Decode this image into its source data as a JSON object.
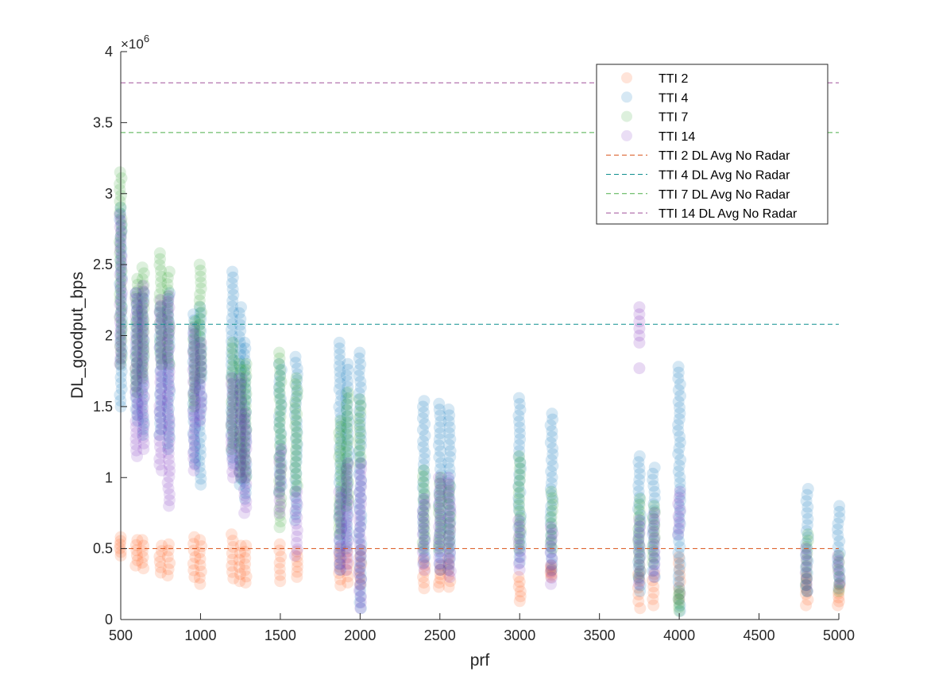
{
  "chart_data": {
    "type": "scatter",
    "title": "",
    "xlabel": "prf",
    "ylabel": "DL_goodput_bps",
    "xlim": [
      500,
      5000
    ],
    "ylim": [
      0,
      4000000
    ],
    "x_ticks": [
      500,
      1000,
      1500,
      2000,
      2500,
      3000,
      3500,
      4000,
      4500,
      5000
    ],
    "x_tick_labels": [
      "500",
      "1000",
      "1500",
      "2000",
      "2500",
      "3000",
      "3500",
      "4000",
      "4500",
      "5000"
    ],
    "y_ticks": [
      0,
      500000,
      1000000,
      1500000,
      2000000,
      2500000,
      3000000,
      3500000,
      4000000
    ],
    "y_tick_labels": [
      "0",
      "0.5",
      "1",
      "1.5",
      "2",
      "2.5",
      "3",
      "3.5",
      "4"
    ],
    "y_exponent_label": "×10",
    "y_exponent_power": "6",
    "grid": false,
    "legend_position": "top-right",
    "scatter_series": [
      {
        "name": "TTI 2",
        "color": "#FF5A14",
        "clusters": [
          {
            "x": 500,
            "ymin": 450000,
            "ymax": 580000
          },
          {
            "x": 600,
            "ymin": 380000,
            "ymax": 560000
          },
          {
            "x": 640,
            "ymin": 360000,
            "ymax": 560000
          },
          {
            "x": 750,
            "ymin": 330000,
            "ymax": 520000
          },
          {
            "x": 800,
            "ymin": 310000,
            "ymax": 530000
          },
          {
            "x": 960,
            "ymin": 300000,
            "ymax": 580000
          },
          {
            "x": 1000,
            "ymin": 250000,
            "ymax": 560000
          },
          {
            "x": 1200,
            "ymin": 290000,
            "ymax": 600000
          },
          {
            "x": 1250,
            "ymin": 270000,
            "ymax": 520000
          },
          {
            "x": 1280,
            "ymin": 260000,
            "ymax": 520000
          },
          {
            "x": 1500,
            "ymin": 270000,
            "ymax": 530000
          },
          {
            "x": 1600,
            "ymin": 300000,
            "ymax": 480000
          },
          {
            "x": 1875,
            "ymin": 240000,
            "ymax": 500000
          },
          {
            "x": 1920,
            "ymin": 260000,
            "ymax": 480000
          },
          {
            "x": 2000,
            "ymin": 250000,
            "ymax": 490000
          },
          {
            "x": 2400,
            "ymin": 220000,
            "ymax": 420000
          },
          {
            "x": 2500,
            "ymin": 230000,
            "ymax": 380000
          },
          {
            "x": 2560,
            "ymin": 230000,
            "ymax": 430000
          },
          {
            "x": 3000,
            "ymin": 130000,
            "ymax": 300000
          },
          {
            "x": 3200,
            "ymin": 300000,
            "ymax": 380000
          },
          {
            "x": 3750,
            "ymin": 80000,
            "ymax": 320000
          },
          {
            "x": 3840,
            "ymin": 100000,
            "ymax": 320000
          },
          {
            "x": 4000,
            "ymin": 140000,
            "ymax": 440000
          },
          {
            "x": 4800,
            "ymin": 100000,
            "ymax": 300000
          },
          {
            "x": 5000,
            "ymin": 100000,
            "ymax": 240000
          }
        ]
      },
      {
        "name": "TTI 4",
        "color": "#0072BD",
        "clusters": [
          {
            "x": 500,
            "ymin": 1500000,
            "ymax": 2900000
          },
          {
            "x": 600,
            "ymin": 1400000,
            "ymax": 2300000
          },
          {
            "x": 640,
            "ymin": 1300000,
            "ymax": 2300000
          },
          {
            "x": 750,
            "ymin": 1300000,
            "ymax": 2200000
          },
          {
            "x": 800,
            "ymin": 1200000,
            "ymax": 2300000
          },
          {
            "x": 960,
            "ymin": 1100000,
            "ymax": 2150000
          },
          {
            "x": 1000,
            "ymin": 950000,
            "ymax": 2200000
          },
          {
            "x": 1200,
            "ymin": 1100000,
            "ymax": 2450000
          },
          {
            "x": 1250,
            "ymin": 950000,
            "ymax": 2200000
          },
          {
            "x": 1280,
            "ymin": 850000,
            "ymax": 1950000
          },
          {
            "x": 1500,
            "ymin": 900000,
            "ymax": 1800000
          },
          {
            "x": 1600,
            "ymin": 700000,
            "ymax": 1850000
          },
          {
            "x": 1875,
            "ymin": 350000,
            "ymax": 1950000
          },
          {
            "x": 1920,
            "ymin": 500000,
            "ymax": 1800000
          },
          {
            "x": 2000,
            "ymin": 80000,
            "ymax": 1880000
          },
          {
            "x": 2400,
            "ymin": 400000,
            "ymax": 1540000
          },
          {
            "x": 2500,
            "ymin": 350000,
            "ymax": 1520000
          },
          {
            "x": 2560,
            "ymin": 350000,
            "ymax": 1480000
          },
          {
            "x": 3000,
            "ymin": 400000,
            "ymax": 1560000
          },
          {
            "x": 3200,
            "ymin": 350000,
            "ymax": 1450000
          },
          {
            "x": 3750,
            "ymin": 200000,
            "ymax": 1150000
          },
          {
            "x": 3840,
            "ymin": 300000,
            "ymax": 1070000
          },
          {
            "x": 4000,
            "ymin": 60000,
            "ymax": 1780000
          },
          {
            "x": 4800,
            "ymin": 200000,
            "ymax": 920000
          },
          {
            "x": 5000,
            "ymin": 220000,
            "ymax": 800000
          }
        ]
      },
      {
        "name": "TTI 7",
        "color": "#2CA02C",
        "clusters": [
          {
            "x": 500,
            "ymin": 1800000,
            "ymax": 3150000
          },
          {
            "x": 600,
            "ymin": 1600000,
            "ymax": 2400000
          },
          {
            "x": 640,
            "ymin": 1700000,
            "ymax": 2480000
          },
          {
            "x": 750,
            "ymin": 1800000,
            "ymax": 2580000
          },
          {
            "x": 800,
            "ymin": 1800000,
            "ymax": 2450000
          },
          {
            "x": 960,
            "ymin": 1500000,
            "ymax": 2100000
          },
          {
            "x": 1000,
            "ymin": 1700000,
            "ymax": 2500000
          },
          {
            "x": 1200,
            "ymin": 1200000,
            "ymax": 1950000
          },
          {
            "x": 1250,
            "ymin": 1000000,
            "ymax": 1800000
          },
          {
            "x": 1280,
            "ymin": 1000000,
            "ymax": 1800000
          },
          {
            "x": 1500,
            "ymin": 650000,
            "ymax": 1880000
          },
          {
            "x": 1600,
            "ymin": 900000,
            "ymax": 1700000
          },
          {
            "x": 1875,
            "ymin": 600000,
            "ymax": 1400000
          },
          {
            "x": 1920,
            "ymin": 800000,
            "ymax": 1600000
          },
          {
            "x": 2000,
            "ymin": 1100000,
            "ymax": 1550000
          },
          {
            "x": 2400,
            "ymin": 500000,
            "ymax": 1050000
          },
          {
            "x": 2500,
            "ymin": 500000,
            "ymax": 1000000
          },
          {
            "x": 2560,
            "ymin": 500000,
            "ymax": 950000
          },
          {
            "x": 3000,
            "ymin": 500000,
            "ymax": 1150000
          },
          {
            "x": 3200,
            "ymin": 500000,
            "ymax": 900000
          },
          {
            "x": 3750,
            "ymin": 300000,
            "ymax": 850000
          },
          {
            "x": 3840,
            "ymin": 400000,
            "ymax": 800000
          },
          {
            "x": 4000,
            "ymin": 60000,
            "ymax": 200000
          },
          {
            "x": 4800,
            "ymin": 200000,
            "ymax": 600000
          },
          {
            "x": 5000,
            "ymin": 200000,
            "ymax": 450000
          }
        ]
      },
      {
        "name": "TTI 14",
        "color": "#7E2FBE",
        "clusters": [
          {
            "x": 500,
            "ymin": 1800000,
            "ymax": 2850000
          },
          {
            "x": 600,
            "ymin": 1150000,
            "ymax": 2300000
          },
          {
            "x": 640,
            "ymin": 1200000,
            "ymax": 2350000
          },
          {
            "x": 750,
            "ymin": 1050000,
            "ymax": 2250000
          },
          {
            "x": 800,
            "ymin": 800000,
            "ymax": 2280000
          },
          {
            "x": 960,
            "ymin": 1050000,
            "ymax": 2050000
          },
          {
            "x": 1000,
            "ymin": 1400000,
            "ymax": 1950000
          },
          {
            "x": 1200,
            "ymin": 1000000,
            "ymax": 1700000
          },
          {
            "x": 1250,
            "ymin": 1000000,
            "ymax": 1700000
          },
          {
            "x": 1280,
            "ymin": 750000,
            "ymax": 1450000
          },
          {
            "x": 1500,
            "ymin": 750000,
            "ymax": 1200000
          },
          {
            "x": 1600,
            "ymin": 450000,
            "ymax": 900000
          },
          {
            "x": 1875,
            "ymin": 350000,
            "ymax": 900000
          },
          {
            "x": 1920,
            "ymin": 350000,
            "ymax": 1100000
          },
          {
            "x": 2000,
            "ymin": 80000,
            "ymax": 1100000
          },
          {
            "x": 2400,
            "ymin": 350000,
            "ymax": 850000
          },
          {
            "x": 2500,
            "ymin": 350000,
            "ymax": 1000000
          },
          {
            "x": 2560,
            "ymin": 300000,
            "ymax": 1000000
          },
          {
            "x": 3000,
            "ymin": 350000,
            "ymax": 700000
          },
          {
            "x": 3200,
            "ymin": 250000,
            "ymax": 650000
          },
          {
            "x": 3750,
            "ymin": 250000,
            "ymax": 700000
          },
          {
            "x": 3840,
            "ymin": 300000,
            "ymax": 750000
          },
          {
            "x": 4000,
            "ymin": 600000,
            "ymax": 900000
          },
          {
            "x": 4800,
            "ymin": 200000,
            "ymax": 500000
          },
          {
            "x": 5000,
            "ymin": 250000,
            "ymax": 450000
          }
        ]
      }
    ],
    "extra_points": [
      {
        "series": "TTI 14",
        "x": 3750,
        "values": [
          1770000,
          1950000,
          2000000,
          2050000,
          2100000,
          2150000,
          2200000
        ]
      }
    ],
    "reference_lines": [
      {
        "name": "TTI 2 DL Avg No Radar",
        "y": 500000,
        "color": "#D95319"
      },
      {
        "name": "TTI 4 DL Avg No Radar",
        "y": 2080000,
        "color": "#0F8F8F"
      },
      {
        "name": "TTI 7 DL Avg No Radar",
        "y": 3430000,
        "color": "#4DAF4A"
      },
      {
        "name": "TTI 14 DL Avg No Radar",
        "y": 3780000,
        "color": "#A0509A"
      }
    ]
  }
}
